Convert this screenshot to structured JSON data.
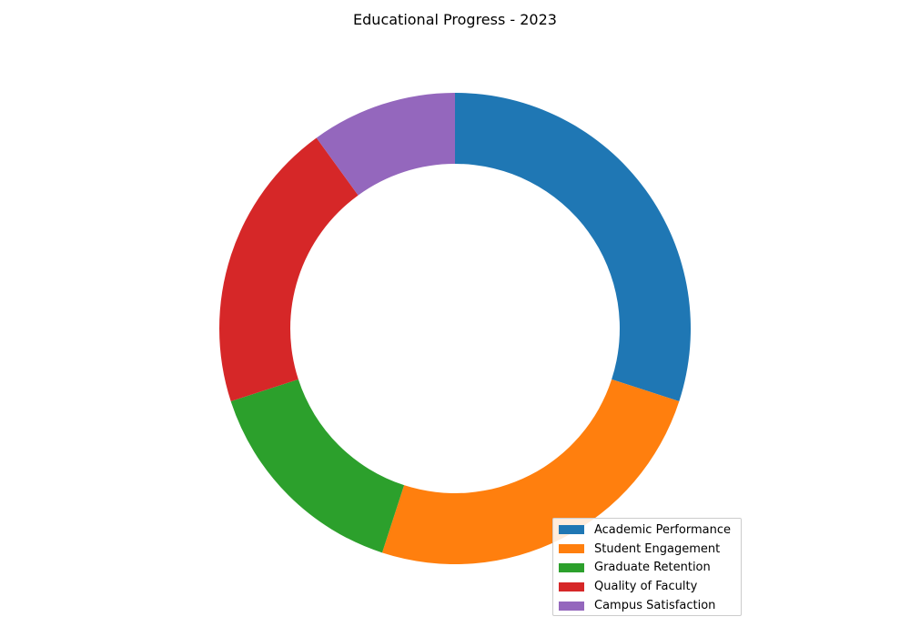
{
  "chart_data": {
    "type": "pie",
    "variant": "donut",
    "title": "Educational Progress - 2023",
    "categories": [
      "Academic Performance",
      "Student Engagement",
      "Graduate Retention",
      "Quality of Faculty",
      "Campus Satisfaction"
    ],
    "values": [
      30,
      25,
      15,
      20,
      10
    ],
    "colors": [
      "#1f77b4",
      "#ff7f0e",
      "#2ca02c",
      "#d62728",
      "#9467bd"
    ],
    "legend_position": "lower-right"
  }
}
